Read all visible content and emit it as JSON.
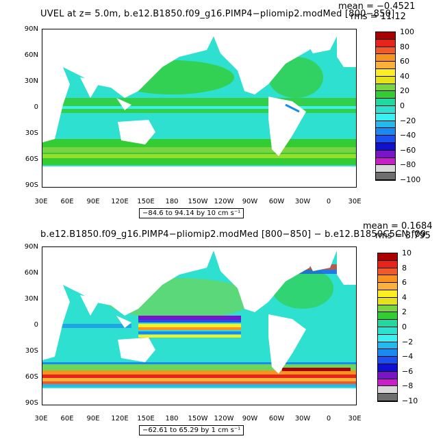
{
  "panels": [
    {
      "title": "UVEL at z=    5.0m, b.e12.B1850.f09_g16.PIMP4−pliomip2.modMed [800−850]",
      "mean_text": "mean = −0.4521",
      "rms_text": "rms = 11.12",
      "lat_labels": [
        "90N",
        "60N",
        "30N",
        "0",
        "30S",
        "60S",
        "90S"
      ],
      "lon_labels": [
        "30E",
        "60E",
        "90E",
        "120E",
        "150E",
        "180",
        "150W",
        "120W",
        "90W",
        "60W",
        "30W",
        "0",
        "30E"
      ],
      "range_label": "−84.6 to 94.14 by 10 cm s⁻¹",
      "colorbar": {
        "labels": [
          "100",
          "80",
          "60",
          "40",
          "20",
          "0",
          "−20",
          "−40",
          "−60",
          "−80",
          "−100"
        ],
        "colors": [
          "#aa0000",
          "#e8231a",
          "#f05a28",
          "#f7931e",
          "#fbb03b",
          "#fcee21",
          "#e5e21c",
          "#7ad341",
          "#33cc33",
          "#20d8a0",
          "#2ee0d0",
          "#3af0f0",
          "#25b8ef",
          "#1a8af0",
          "#1b4fee",
          "#1010d0",
          "#7a14c8",
          "#c81ec8",
          "#d8d8d8",
          "#6e6e6e"
        ]
      }
    },
    {
      "title": "b.e12.B1850.f09_g16.PIMP4−pliomip2.modMed [800−850] − b.e12.B1850C5CN.f09",
      "mean_text": "mean = 0.1684",
      "rms_text": "rms = 3.795",
      "lat_labels": [
        "90N",
        "60N",
        "30N",
        "0",
        "30S",
        "60S",
        "90S"
      ],
      "lon_labels": [
        "30E",
        "60E",
        "90E",
        "120E",
        "150E",
        "180",
        "150W",
        "120W",
        "90W",
        "60W",
        "30W",
        "0",
        "30E"
      ],
      "range_label": "−62.61 to 65.29 by 1 cm s⁻¹",
      "colorbar": {
        "labels": [
          "10",
          "8",
          "6",
          "4",
          "2",
          "0",
          "−2",
          "−4",
          "−6",
          "−8",
          "−10"
        ],
        "colors": [
          "#aa0000",
          "#e8231a",
          "#f05a28",
          "#f7931e",
          "#fbb03b",
          "#fcee21",
          "#e5e21c",
          "#7ad341",
          "#33cc33",
          "#20d8a0",
          "#2ee0d0",
          "#3af0f0",
          "#25b8ef",
          "#1a8af0",
          "#1b4fee",
          "#1010d0",
          "#7a14c8",
          "#c81ec8",
          "#d8d8d8",
          "#6e6e6e"
        ]
      }
    }
  ]
}
